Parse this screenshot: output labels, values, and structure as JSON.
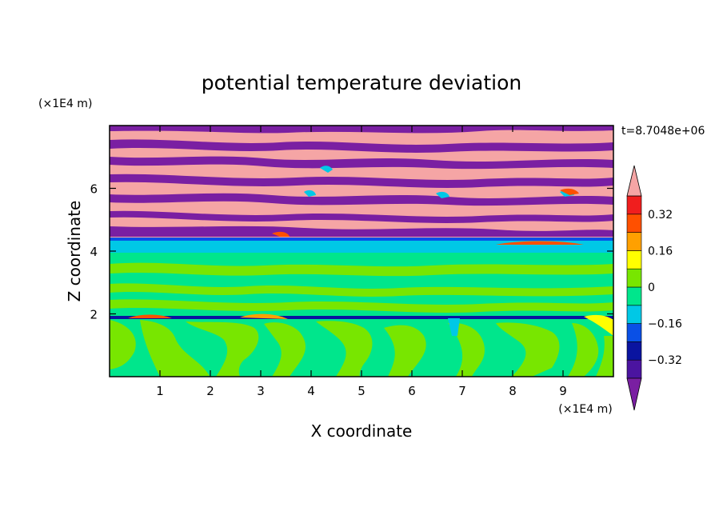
{
  "chart_data": {
    "type": "heatmap",
    "title": "potential temperature deviation",
    "xlabel": "X coordinate",
    "ylabel": "Z coordinate",
    "x_unit": "(×1E4 m)",
    "y_unit": "(×1E4 m)",
    "time_label": "t=8.7048e+06",
    "xlim": [
      0,
      10
    ],
    "ylim": [
      0,
      8
    ],
    "x_ticks": [
      "1",
      "2",
      "3",
      "4",
      "5",
      "6",
      "7",
      "8",
      "9"
    ],
    "x_tick_values": [
      1,
      2,
      3,
      4,
      5,
      6,
      7,
      8,
      9
    ],
    "y_ticks": [
      "2",
      "4",
      "6"
    ],
    "y_tick_values": [
      2,
      4,
      6
    ],
    "colorbar": {
      "levels": [
        -0.4,
        -0.32,
        -0.24,
        -0.16,
        -0.08,
        0,
        0.08,
        0.16,
        0.24,
        0.32,
        0.4
      ],
      "tick_labels": [
        "0.32",
        "0.16",
        "0",
        "−0.16",
        "−0.32"
      ],
      "tick_values": [
        0.32,
        0.16,
        0,
        -0.16,
        -0.32
      ],
      "colors": [
        "#7a1fa2",
        "#4b14a0",
        "#0a14a0",
        "#0a50e6",
        "#00c8e6",
        "#00e68c",
        "#78e600",
        "#ffff00",
        "#ffa000",
        "#ff5000",
        "#f01e1e",
        "#f5a5a5"
      ],
      "extend": "both"
    },
    "regions": [
      {
        "name": "upper layer (z 4.3–8)",
        "dominant_values": "alternating bands of ≈+0.4 (pink) and ≈−0.4 (purple)"
      },
      {
        "name": "thin stable band (z ≈ 4.1–4.4)",
        "dominant_values": "≈−0.08 to −0.16 (cyan/blue)"
      },
      {
        "name": "middle layer (z 2–4)",
        "dominant_values": "≈0 to +0.08 (green)"
      },
      {
        "name": "interface (z ≈ 2)",
        "dominant_values": "mixed −0.32 to +0.32"
      },
      {
        "name": "lower layer (z 0–2)",
        "dominant_values": "≈0 to +0.08 convective cells (green/light-green)"
      }
    ]
  }
}
